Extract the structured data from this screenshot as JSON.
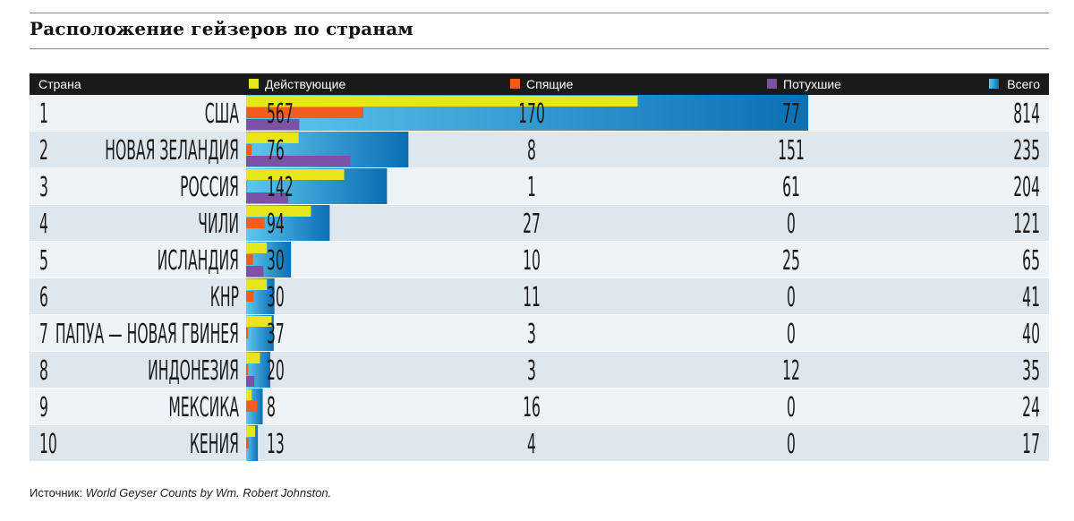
{
  "title": "Расположение гейзеров по странам",
  "source": {
    "prefix": "Источник:",
    "work": "World Geyser Counts by Wm. Robert Johnston."
  },
  "colors": {
    "header_bg": "#1a1a1a",
    "active": "#e6e61a",
    "dormant": "#f25c1c",
    "extinct": "#7b52a6",
    "total_light": "#5ec8ef",
    "total_dark": "#0a6fb4",
    "row_light": "#eef3f7",
    "row_dark": "#dfe7ee"
  },
  "chart_data": {
    "type": "table",
    "title": "Расположение гейзеров по странам",
    "header_label": "Страна",
    "series": [
      {
        "key": "active",
        "name": "Действующие",
        "values": [
          567,
          76,
          142,
          94,
          30,
          30,
          37,
          20,
          8,
          13
        ]
      },
      {
        "key": "dormant",
        "name": "Спящие",
        "values": [
          170,
          8,
          1,
          27,
          10,
          11,
          3,
          3,
          16,
          4
        ]
      },
      {
        "key": "extinct",
        "name": "Потухшие",
        "values": [
          77,
          151,
          61,
          0,
          25,
          0,
          0,
          12,
          0,
          0
        ]
      },
      {
        "key": "total",
        "name": "Всего",
        "values": [
          814,
          235,
          204,
          121,
          65,
          41,
          40,
          35,
          24,
          17
        ]
      }
    ],
    "ranks": [
      "1",
      "2",
      "3",
      "4",
      "5",
      "6",
      "7",
      "8",
      "9",
      "10"
    ],
    "categories": [
      "США",
      "НОВАЯ ЗЕЛАНДИЯ",
      "РОССИЯ",
      "ЧИЛИ",
      "ИСЛАНДИЯ",
      "КНР",
      "ПАПУА — НОВАЯ ГВИНЕЯ",
      "ИНДОНЕЗИЯ",
      "МЕКСИКА",
      "КЕНИЯ"
    ],
    "xlim": [
      0,
      814
    ]
  }
}
